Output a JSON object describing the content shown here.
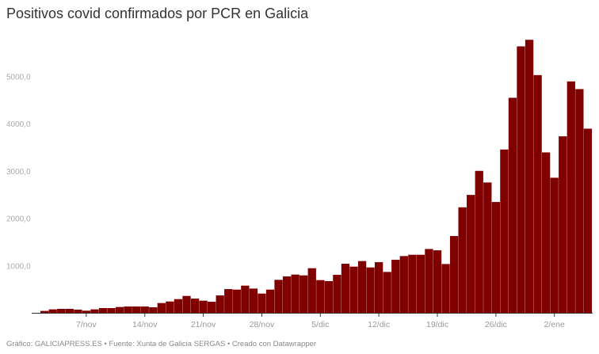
{
  "chart_data": {
    "type": "bar",
    "title": "Positivos covid confirmados por PCR en Galicia",
    "xlabel": "",
    "ylabel": "",
    "ylim": [
      0,
      5800
    ],
    "grid": false,
    "bar_color": "#800000",
    "y_ticks": [
      {
        "value": 1000,
        "label": "1000,0"
      },
      {
        "value": 2000,
        "label": "2000,0"
      },
      {
        "value": 3000,
        "label": "3000,0"
      },
      {
        "value": 4000,
        "label": "4000,0"
      },
      {
        "value": 5000,
        "label": "5000,0"
      }
    ],
    "x_ticks": [
      {
        "date": "7/nov",
        "label": "7/nov"
      },
      {
        "date": "14/nov",
        "label": "14/nov"
      },
      {
        "date": "21/nov",
        "label": "21/nov"
      },
      {
        "date": "28/nov",
        "label": "28/nov"
      },
      {
        "date": "5/dic",
        "label": "5/dic"
      },
      {
        "date": "12/dic",
        "label": "12/dic"
      },
      {
        "date": "19/dic",
        "label": "19/dic"
      },
      {
        "date": "26/dic",
        "label": "26/dic"
      },
      {
        "date": "2/ene",
        "label": "2/ene"
      }
    ],
    "categories": [
      "2/nov",
      "3/nov",
      "4/nov",
      "5/nov",
      "6/nov",
      "7/nov",
      "8/nov",
      "9/nov",
      "10/nov",
      "11/nov",
      "12/nov",
      "13/nov",
      "14/nov",
      "15/nov",
      "16/nov",
      "17/nov",
      "18/nov",
      "19/nov",
      "20/nov",
      "21/nov",
      "22/nov",
      "23/nov",
      "24/nov",
      "25/nov",
      "26/nov",
      "27/nov",
      "28/nov",
      "29/nov",
      "30/nov",
      "1/dic",
      "2/dic",
      "3/dic",
      "4/dic",
      "5/dic",
      "6/dic",
      "7/dic",
      "8/dic",
      "9/dic",
      "10/dic",
      "11/dic",
      "12/dic",
      "13/dic",
      "14/dic",
      "15/dic",
      "16/dic",
      "17/dic",
      "18/dic",
      "19/dic",
      "20/dic",
      "21/dic",
      "22/dic",
      "23/dic",
      "24/dic",
      "25/dic",
      "26/dic",
      "27/dic",
      "28/dic",
      "29/dic",
      "30/dic",
      "31/dic",
      "1/ene",
      "2/ene",
      "3/ene",
      "4/ene",
      "5/ene",
      "6/ene"
    ],
    "values": [
      40,
      73,
      84,
      84,
      67,
      45,
      73,
      100,
      100,
      123,
      134,
      134,
      134,
      117,
      207,
      240,
      290,
      357,
      301,
      257,
      234,
      368,
      502,
      491,
      575,
      513,
      407,
      491,
      698,
      770,
      809,
      792,
      943,
      692,
      670,
      804,
      1038,
      977,
      1094,
      960,
      1071,
      865,
      1122,
      1200,
      1228,
      1228,
      1350,
      1322,
      1032,
      1624,
      2232,
      2494,
      3002,
      2757,
      2344,
      3454,
      4548,
      5636,
      5775,
      5028,
      3393,
      2857,
      3733,
      4894,
      4732,
      3895
    ]
  },
  "footer": "Gráfico: GALICIAPRESS.ES • Fuente: Xunta de Galicia SERGAS • Creado con Datawrapper"
}
